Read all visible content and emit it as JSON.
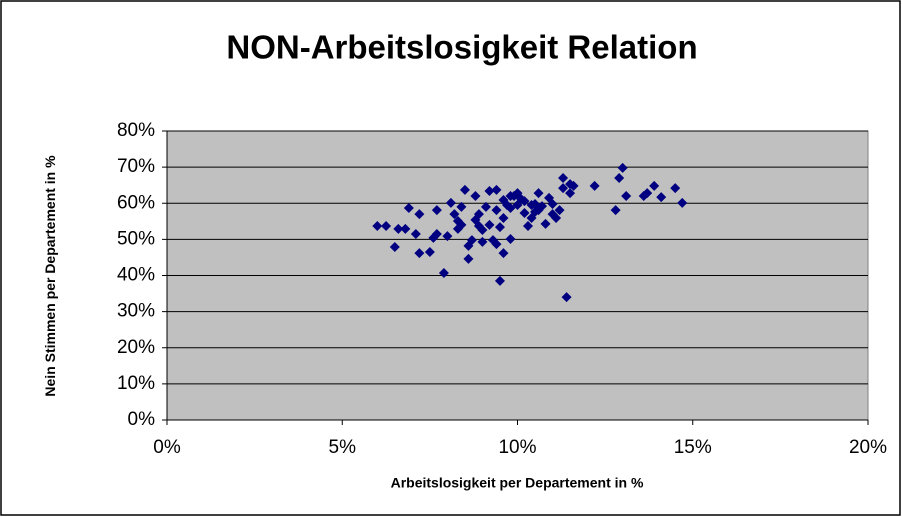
{
  "chart_data": {
    "type": "scatter",
    "title": "NON-Arbeitslosigkeit Relation",
    "x_label": "Arbeitslosigkeit per Departement in %",
    "y_label": "Nein Stimmen per Departement in %",
    "color": "#000080",
    "grid": true,
    "xlim": [
      0,
      20
    ],
    "ylim": [
      0,
      80
    ],
    "xticks": [
      {
        "value": 0,
        "label": "0%"
      },
      {
        "value": 5,
        "label": "5%"
      },
      {
        "value": 10,
        "label": "10%"
      },
      {
        "value": 15,
        "label": "15%"
      },
      {
        "value": 20,
        "label": "20%"
      }
    ],
    "yticks": [
      {
        "value": 0,
        "label": "0%"
      },
      {
        "value": 10,
        "label": "10%"
      },
      {
        "value": 20,
        "label": "20%"
      },
      {
        "value": 30,
        "label": "30%"
      },
      {
        "value": 40,
        "label": "40%"
      },
      {
        "value": 50,
        "label": "50%"
      },
      {
        "value": 60,
        "label": "60%"
      },
      {
        "value": 70,
        "label": "70%"
      },
      {
        "value": 80,
        "label": "80%"
      }
    ],
    "x": [
      6.0,
      6.25,
      6.5,
      6.6,
      6.8,
      6.9,
      7.1,
      7.2,
      7.2,
      7.5,
      7.6,
      7.7,
      7.7,
      7.9,
      8.0,
      8.1,
      8.2,
      8.3,
      8.3,
      8.4,
      8.4,
      8.5,
      8.6,
      8.6,
      8.7,
      8.8,
      8.8,
      8.9,
      8.9,
      9.0,
      9.0,
      9.1,
      9.2,
      9.2,
      9.3,
      9.4,
      9.4,
      9.4,
      9.5,
      9.5,
      9.6,
      9.6,
      9.6,
      9.7,
      9.8,
      9.8,
      9.8,
      9.9,
      10.0,
      10.0,
      10.1,
      10.2,
      10.2,
      10.3,
      10.4,
      10.4,
      10.5,
      10.5,
      10.6,
      10.6,
      10.7,
      10.8,
      10.9,
      11.0,
      11.0,
      11.1,
      11.2,
      11.3,
      11.3,
      11.4,
      11.5,
      11.5,
      11.6,
      12.2,
      12.8,
      12.9,
      13.0,
      13.1,
      13.6,
      13.7,
      13.9,
      14.1,
      14.5,
      14.7
    ],
    "values": [
      53.7,
      53.7,
      47.9,
      52.9,
      52.9,
      58.7,
      51.5,
      57.0,
      46.2,
      46.5,
      50.4,
      58.1,
      51.5,
      40.7,
      50.9,
      60.1,
      57.0,
      55.1,
      52.9,
      54.0,
      59.0,
      63.7,
      48.2,
      44.6,
      49.8,
      62.0,
      55.4,
      53.7,
      57.0,
      49.3,
      52.6,
      59.0,
      54.0,
      63.4,
      49.8,
      58.1,
      63.7,
      48.7,
      53.4,
      38.5,
      60.9,
      55.9,
      46.2,
      59.5,
      62.0,
      50.1,
      58.7,
      62.0,
      62.8,
      59.5,
      61.2,
      57.3,
      60.6,
      53.7,
      55.9,
      59.5,
      57.6,
      59.8,
      62.8,
      58.1,
      59.2,
      54.3,
      61.5,
      57.0,
      59.8,
      55.9,
      58.1,
      64.2,
      67.0,
      34.0,
      65.3,
      62.8,
      64.8,
      64.8,
      58.1,
      67.0,
      69.8,
      62.0,
      62.0,
      62.8,
      64.8,
      61.7,
      64.2,
      60.1
    ]
  }
}
